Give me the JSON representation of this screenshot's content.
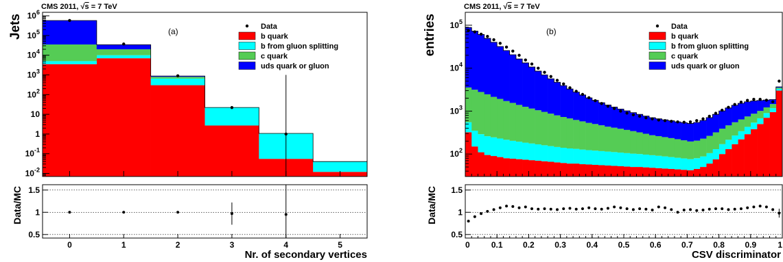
{
  "chart_data": [
    {
      "type": "bar",
      "stacked": true,
      "header": "CMS 2011, ",
      "header_energy": "= 7 TeV",
      "panel_label": "(a)",
      "xlabel": "Nr. of secondary vertices",
      "ylabel": "Jets",
      "ratio_ylabel": "Data/MC",
      "log_y": true,
      "xlim": [
        -0.5,
        5.5
      ],
      "ylim": [
        0.007,
        1500000
      ],
      "x_ticks": [
        "0",
        "1",
        "2",
        "3",
        "4",
        "5"
      ],
      "y_ticks": [
        {
          "value": 0.01,
          "base": "10",
          "exp": "-2"
        },
        {
          "value": 0.1,
          "base": "10",
          "exp": "-1"
        },
        {
          "value": 1,
          "base": "1",
          "exp": ""
        },
        {
          "value": 10,
          "base": "10",
          "exp": ""
        },
        {
          "value": 100,
          "base": "10",
          "exp": "2"
        },
        {
          "value": 1000,
          "base": "10",
          "exp": "3"
        },
        {
          "value": 10000,
          "base": "10",
          "exp": "4"
        },
        {
          "value": 100000,
          "base": "10",
          "exp": "5"
        },
        {
          "value": 1000000,
          "base": "10",
          "exp": "6"
        }
      ],
      "categories": [
        0,
        1,
        2,
        3,
        4,
        5
      ],
      "series": [
        {
          "name": "b quark",
          "color": "#ff0000",
          "values": [
            3500,
            7000,
            300,
            2.7,
            0.055,
            0.012
          ]
        },
        {
          "name": "b from gluon splitting",
          "color": "#00ffff",
          "values": [
            1500,
            3000,
            350,
            19,
            1.0,
            0.028
          ]
        },
        {
          "name": "c quark",
          "color": "#55cc55",
          "values": [
            30000,
            10000,
            150,
            0.3,
            0.02,
            0.0
          ]
        },
        {
          "name": "uds quark or gluon",
          "color": "#0000ff",
          "values": [
            540000,
            14000,
            80,
            0.2,
            0.0,
            0.0
          ]
        }
      ],
      "data_points": {
        "name": "Data",
        "x": [
          0,
          1,
          2,
          3,
          4
        ],
        "y": [
          580000,
          37000,
          900,
          22,
          1.0
        ],
        "yerr_high": [
          0,
          0,
          0,
          0,
          1000
        ]
      },
      "legend": [
        "Data",
        "b quark",
        "b from gluon splitting",
        "c quark",
        "uds quark or gluon"
      ],
      "legend_position": "top-right",
      "ratio": {
        "ylim": [
          0.42,
          1.62
        ],
        "y_ticks": [
          "0.5",
          "1",
          "1.5"
        ],
        "x": [
          0,
          1,
          2,
          3,
          4
        ],
        "y": [
          1.0,
          1.0,
          1.0,
          0.97,
          0.95
        ],
        "err": [
          0.0,
          0.0,
          0.02,
          0.25,
          1.0
        ]
      }
    },
    {
      "type": "bar",
      "stacked": true,
      "header": "CMS 2011, ",
      "header_energy": "= 7 TeV",
      "panel_label": "(b)",
      "xlabel": "CSV discriminator",
      "ylabel": "entries",
      "ratio_ylabel": "Data/MC",
      "log_y": true,
      "xlim": [
        0,
        1
      ],
      "ylim": [
        30,
        200000
      ],
      "x_ticks": [
        "0",
        "0.1",
        "0.2",
        "0.3",
        "0.4",
        "0.5",
        "0.6",
        "0.7",
        "0.8",
        "0.9",
        "1"
      ],
      "y_ticks": [
        {
          "value": 100,
          "base": "10",
          "exp": "2"
        },
        {
          "value": 1000,
          "base": "10",
          "exp": "3"
        },
        {
          "value": 10000,
          "base": "10",
          "exp": "4"
        },
        {
          "value": 100000,
          "base": "10",
          "exp": "5"
        }
      ],
      "bins": 50,
      "series": [
        {
          "name": "b quark",
          "color": "#ff0000",
          "values": [
            320,
            150,
            110,
            95,
            90,
            85,
            80,
            78,
            76,
            74,
            72,
            70,
            68,
            66,
            64,
            62,
            60,
            60,
            58,
            57,
            56,
            55,
            54,
            53,
            52,
            51,
            50,
            50,
            49,
            48,
            47,
            46,
            45,
            44,
            43,
            42,
            45,
            50,
            60,
            75,
            100,
            130,
            170,
            220,
            290,
            380,
            500,
            700,
            950,
            3000
          ]
        },
        {
          "name": "b from gluon splitting",
          "color": "#00ffff",
          "values": [
            230,
            200,
            180,
            165,
            155,
            145,
            135,
            125,
            118,
            110,
            104,
            98,
            92,
            87,
            82,
            78,
            75,
            72,
            69,
            66,
            64,
            62,
            60,
            58,
            56,
            54,
            52,
            50,
            48,
            46,
            44,
            42,
            40,
            38,
            36,
            34,
            35,
            38,
            45,
            55,
            70,
            85,
            100,
            120,
            140,
            160,
            180,
            200,
            220,
            300
          ]
        },
        {
          "name": "c quark",
          "color": "#55cc55",
          "values": [
            3000,
            2800,
            2500,
            2200,
            1900,
            1700,
            1500,
            1350,
            1200,
            1080,
            970,
            880,
            800,
            720,
            650,
            590,
            540,
            490,
            450,
            410,
            380,
            350,
            320,
            300,
            280,
            260,
            240,
            220,
            200,
            180,
            170,
            160,
            150,
            140,
            130,
            120,
            125,
            140,
            160,
            190,
            220,
            250,
            280,
            300,
            320,
            330,
            330,
            320,
            290,
            220
          ]
        },
        {
          "name": "uds quark or gluon",
          "color": "#0000ff",
          "values": [
            85000,
            70000,
            58000,
            47000,
            38000,
            30000,
            24000,
            19000,
            15000,
            12000,
            9500,
            7500,
            6000,
            4800,
            3900,
            3200,
            2600,
            2150,
            1800,
            1500,
            1280,
            1100,
            950,
            830,
            730,
            650,
            580,
            520,
            470,
            430,
            400,
            380,
            360,
            340,
            330,
            320,
            340,
            380,
            440,
            520,
            620,
            720,
            820,
            880,
            900,
            860,
            760,
            600,
            400,
            150
          ]
        }
      ],
      "data_points": {
        "name": "Data",
        "x": [
          0.01,
          0.03,
          0.05,
          0.07,
          0.09,
          0.11,
          0.13,
          0.15,
          0.17,
          0.19,
          0.21,
          0.23,
          0.25,
          0.27,
          0.29,
          0.31,
          0.33,
          0.35,
          0.37,
          0.39,
          0.41,
          0.43,
          0.45,
          0.47,
          0.49,
          0.51,
          0.53,
          0.55,
          0.57,
          0.59,
          0.61,
          0.63,
          0.65,
          0.67,
          0.69,
          0.71,
          0.73,
          0.75,
          0.77,
          0.79,
          0.81,
          0.83,
          0.85,
          0.87,
          0.89,
          0.91,
          0.93,
          0.95,
          0.97,
          0.99
        ],
        "y": [
          75000,
          70000,
          62000,
          55000,
          46000,
          38000,
          31000,
          25000,
          20000,
          15500,
          12500,
          10000,
          8000,
          6400,
          5200,
          4300,
          3500,
          2900,
          2450,
          2050,
          1750,
          1500,
          1300,
          1150,
          1000,
          900,
          820,
          760,
          700,
          660,
          620,
          600,
          580,
          560,
          550,
          560,
          600,
          660,
          760,
          890,
          1050,
          1230,
          1430,
          1620,
          1780,
          1880,
          1880,
          1800,
          1650,
          5000
        ]
      },
      "legend": [
        "Data",
        "b quark",
        "b from gluon splitting",
        "c quark",
        "uds quark or gluon"
      ],
      "legend_position": "top-right",
      "ratio": {
        "ylim": [
          0.42,
          1.62
        ],
        "y_ticks": [
          "0.5",
          "1",
          "1.5"
        ],
        "x": [
          0.01,
          0.03,
          0.05,
          0.07,
          0.09,
          0.11,
          0.13,
          0.15,
          0.17,
          0.19,
          0.21,
          0.23,
          0.25,
          0.27,
          0.29,
          0.31,
          0.33,
          0.35,
          0.37,
          0.39,
          0.41,
          0.43,
          0.45,
          0.47,
          0.49,
          0.51,
          0.53,
          0.55,
          0.57,
          0.59,
          0.61,
          0.63,
          0.65,
          0.67,
          0.69,
          0.71,
          0.73,
          0.75,
          0.77,
          0.79,
          0.81,
          0.83,
          0.85,
          0.87,
          0.89,
          0.91,
          0.93,
          0.95,
          0.97,
          0.99
        ],
        "y": [
          0.8,
          0.9,
          0.97,
          1.02,
          1.06,
          1.1,
          1.14,
          1.13,
          1.1,
          1.12,
          1.08,
          1.07,
          1.08,
          1.07,
          1.06,
          1.08,
          1.09,
          1.07,
          1.08,
          1.1,
          1.08,
          1.07,
          1.09,
          1.12,
          1.1,
          1.08,
          1.06,
          1.08,
          1.07,
          1.05,
          1.12,
          1.1,
          1.06,
          1.0,
          1.05,
          1.06,
          1.04,
          1.05,
          1.07,
          1.08,
          1.08,
          1.06,
          1.07,
          1.08,
          1.1,
          1.12,
          1.14,
          1.12,
          1.06,
          0.98
        ],
        "err": [
          0,
          0,
          0,
          0,
          0,
          0,
          0,
          0,
          0,
          0,
          0,
          0,
          0,
          0,
          0,
          0,
          0,
          0,
          0,
          0,
          0,
          0,
          0,
          0,
          0,
          0,
          0,
          0,
          0,
          0,
          0,
          0,
          0,
          0,
          0,
          0,
          0,
          0,
          0,
          0,
          0,
          0,
          0,
          0,
          0,
          0,
          0,
          0,
          0.03,
          0.1
        ]
      }
    }
  ]
}
